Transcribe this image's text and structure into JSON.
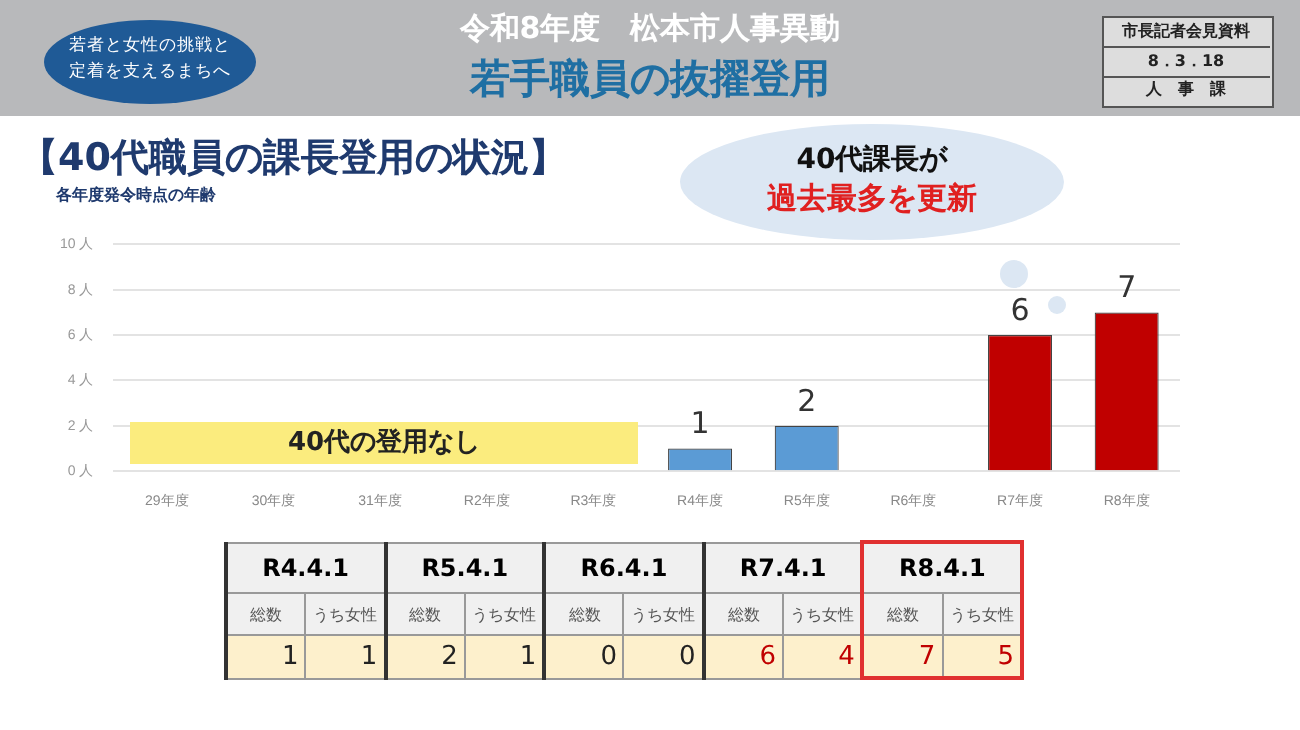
{
  "chart_data": [
    {
      "type": "bar",
      "title": "【40代職員の課長登用の状況】",
      "subtitle": "各年度発令時点の年齢",
      "categories": [
        "29年度",
        "30年度",
        "31年度",
        "R2年度",
        "R3年度",
        "R4年度",
        "R5年度",
        "R6年度",
        "R7年度",
        "R8年度"
      ],
      "values": [
        0,
        0,
        0,
        0,
        0,
        1,
        2,
        0,
        6,
        7
      ],
      "colors": [
        "#5b9bd5",
        "#5b9bd5",
        "#5b9bd5",
        "#5b9bd5",
        "#5b9bd5",
        "#5b9bd5",
        "#5b9bd5",
        "#5b9bd5",
        "#c00000",
        "#c00000"
      ],
      "value_labels": [
        null,
        null,
        null,
        null,
        null,
        "1",
        "2",
        null,
        "6",
        "7"
      ],
      "ylim": [
        0,
        10
      ],
      "yticks": [
        {
          "value": 0,
          "label": "0 人"
        },
        {
          "value": 2,
          "label": "2 人"
        },
        {
          "value": 4,
          "label": "4 人"
        },
        {
          "value": 6,
          "label": "6 人"
        },
        {
          "value": 8,
          "label": "8 人"
        },
        {
          "value": 10,
          "label": "10 人"
        }
      ],
      "grid": "y",
      "legend": false,
      "annotations": [
        "令和8年度　松本市人事異動",
        "若手職員の抜擢登用",
        "若者と女性の挑戦と",
        "定着を支えるまちへ",
        "市長記者会見資料",
        "8．3．18",
        "人　事　課",
        "40代課長が",
        "過去最多を更新",
        "40代の登用なし"
      ]
    },
    {
      "type": "other",
      "annotations": [
        "R4.4.1",
        "R5.4.1",
        "R6.4.1",
        "R7.4.1",
        "R8.4.1",
        "総数",
        "うち女性",
        "総数",
        "うち女性",
        "総数",
        "うち女性",
        "総数",
        "うち女性",
        "総数",
        "うち女性",
        "1",
        "1",
        "2",
        "1",
        "0",
        "0",
        "6",
        "4",
        "7",
        "5"
      ]
    }
  ]
}
